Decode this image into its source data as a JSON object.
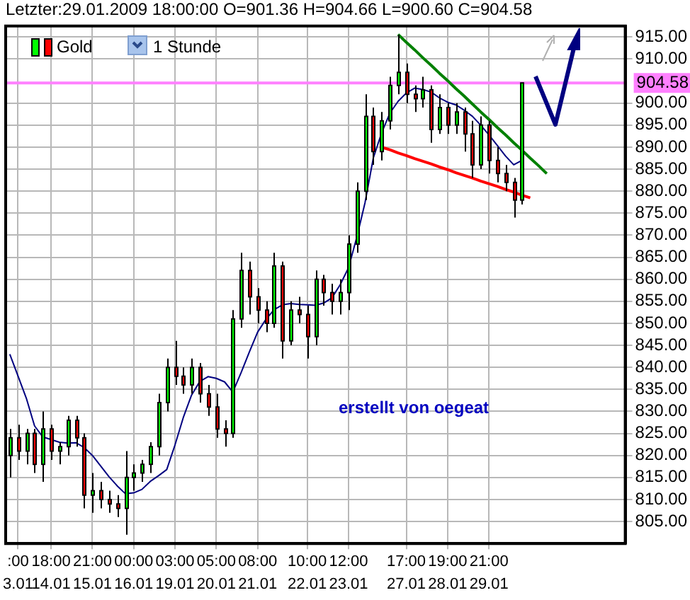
{
  "chart_data": {
    "type": "candlestick",
    "title": "Letzter:29.01.2009 18:00:00 O=901.36 H=904.66 L=900.60 C=904.58",
    "categories": [
      null,
      ":00\n3.01",
      null,
      null,
      null,
      "18:00\n14.01",
      null,
      null,
      null,
      null,
      "21:00\n15.01",
      null,
      null,
      null,
      null,
      "00:00\n16.01",
      null,
      null,
      null,
      null,
      "03:00\n19.01",
      null,
      null,
      null,
      null,
      "05:00\n20.01",
      null,
      null,
      null,
      null,
      "08:00\n21.01",
      null,
      null,
      null,
      null,
      null,
      "10:00\n22.01",
      null,
      null,
      null,
      null,
      "12:00\n23.01",
      null,
      null,
      null,
      null,
      null,
      null,
      "17:00\n27.01",
      null,
      null,
      null,
      null,
      "19:00\n28.01",
      null,
      null,
      null,
      null,
      "21:00\n29.01",
      null,
      null,
      null,
      null,
      null,
      null,
      null,
      null,
      null,
      null,
      null,
      null,
      null,
      null,
      null,
      null
    ],
    "ylim": [
      800,
      917.5
    ],
    "yticks": [
      {
        "value": 805,
        "label": "805.00"
      },
      {
        "value": 810,
        "label": "810.00"
      },
      {
        "value": 815,
        "label": "815.00"
      },
      {
        "value": 820,
        "label": "820.00"
      },
      {
        "value": 825,
        "label": "825.00"
      },
      {
        "value": 830,
        "label": "830.00"
      },
      {
        "value": 835,
        "label": "835.00"
      },
      {
        "value": 840,
        "label": "840.00"
      },
      {
        "value": 845,
        "label": "845.00"
      },
      {
        "value": 850,
        "label": "850.00"
      },
      {
        "value": 855,
        "label": "855.00"
      },
      {
        "value": 860,
        "label": "860.00"
      },
      {
        "value": 865,
        "label": "865.00"
      },
      {
        "value": 870,
        "label": "870.00"
      },
      {
        "value": 875,
        "label": "875.00"
      },
      {
        "value": 880,
        "label": "880.00"
      },
      {
        "value": 885,
        "label": "885.00"
      },
      {
        "value": 890,
        "label": "890.00"
      },
      {
        "value": 895,
        "label": "895.00"
      },
      {
        "value": 900,
        "label": "900.00"
      },
      {
        "value": 910,
        "label": "910.00"
      },
      {
        "value": 915,
        "label": "915.00"
      }
    ],
    "grid": true,
    "legend": "top left",
    "ref_lines": [
      {
        "axis": "y",
        "value": 904.58,
        "label": "904.58",
        "color": "#ff80ff"
      }
    ],
    "annotations": [
      "1 Stunde",
      "erstellt von oegeat"
    ],
    "series": [
      {
        "name": "Gold",
        "type": "candlestick",
        "colors": [
          "#00ff00",
          "#ff0000",
          "#00ff00",
          "#ff0000",
          "#00ff00",
          "#ff0000",
          "#00ff00",
          "#00ff00",
          "#ff0000",
          "#ff0000",
          "#00ff00",
          "#ff0000",
          "#ff0000",
          "#ff0000",
          "#00ff00",
          "#00ff00",
          "#00ff00",
          "#00ff00",
          "#00ff00",
          "#00ff00",
          "#ff0000",
          "#ff0000",
          "#00ff00",
          "#ff0000",
          "#ff0000",
          "#ff0000",
          "#ff0000",
          "#00ff00",
          "#00ff00",
          "#ff0000",
          "#ff0000",
          "#ff0000",
          "#00ff00",
          "#ff0000",
          "#00ff00",
          "#ff0000",
          "#ff0000",
          "#00ff00",
          "#ff0000",
          "#ff0000",
          "#00ff00",
          "#00ff00",
          "#00ff00",
          "#00ff00",
          "#ff0000",
          "#00ff00",
          "#00ff00",
          "#00ff00",
          "#ff0000",
          "#ff0000",
          "#00ff00",
          "#ff0000",
          "#00ff00",
          "#ff0000",
          "#00ff00",
          "#ff0000",
          "#ff0000",
          "#00ff00",
          "#ff0000",
          "#ff0000",
          "#ff0000",
          "#ff0000",
          "#00ff00",
          null,
          null,
          null,
          null,
          null,
          null,
          null,
          null,
          null,
          null,
          null,
          null
        ],
        "ohlc": [
          [
            820,
            826,
            815,
            824
          ],
          [
            824,
            827,
            819,
            821
          ],
          [
            821,
            826,
            818,
            825
          ],
          [
            825,
            826,
            816,
            818
          ],
          [
            818,
            830,
            814,
            826
          ],
          [
            826,
            827,
            819,
            821
          ],
          [
            821,
            823,
            818,
            822
          ],
          [
            822,
            829,
            820,
            828
          ],
          [
            828,
            829,
            822,
            824
          ],
          [
            824,
            825,
            808,
            811
          ],
          [
            811,
            816,
            807,
            812
          ],
          [
            812,
            814,
            808,
            810
          ],
          [
            810,
            812,
            807,
            809
          ],
          [
            809,
            811,
            806,
            808
          ],
          [
            808,
            821,
            802,
            815
          ],
          [
            815,
            818,
            812,
            816
          ],
          [
            816,
            819,
            814,
            818
          ],
          [
            818,
            823,
            816,
            822
          ],
          [
            822,
            834,
            820,
            832
          ],
          [
            832,
            842,
            830,
            840
          ],
          [
            840,
            846,
            836,
            838
          ],
          [
            838,
            840,
            834,
            836
          ],
          [
            836,
            842,
            834,
            840
          ],
          [
            840,
            841,
            832,
            834
          ],
          [
            834,
            836,
            829,
            831
          ],
          [
            831,
            834,
            824,
            826
          ],
          [
            826,
            828,
            822,
            825
          ],
          [
            825,
            853,
            824,
            851
          ],
          [
            851,
            866,
            849,
            862
          ],
          [
            862,
            864,
            852,
            856
          ],
          [
            856,
            858,
            850,
            853
          ],
          [
            853,
            855,
            848,
            850
          ],
          [
            850,
            866,
            849,
            863
          ],
          [
            863,
            864,
            842,
            846
          ],
          [
            846,
            855,
            845,
            853
          ],
          [
            853,
            856,
            850,
            852
          ],
          [
            852,
            854,
            842,
            847
          ],
          [
            847,
            862,
            845,
            860
          ],
          [
            860,
            861,
            854,
            857
          ],
          [
            857,
            859,
            852,
            855
          ],
          [
            855,
            860,
            852,
            857
          ],
          [
            857,
            870,
            853,
            868
          ],
          [
            868,
            882,
            866,
            880
          ],
          [
            880,
            902,
            878,
            897
          ],
          [
            897,
            899,
            886,
            889
          ],
          [
            889,
            898,
            887,
            896
          ],
          [
            896,
            906,
            894,
            904
          ],
          [
            904,
            915.5,
            902,
            907
          ],
          [
            907,
            909,
            900,
            902
          ],
          [
            902,
            904,
            898,
            901
          ],
          [
            901,
            906,
            899,
            903
          ],
          [
            903,
            904,
            891,
            894
          ],
          [
            894,
            902,
            893,
            899
          ],
          [
            899,
            900,
            893,
            895
          ],
          [
            895,
            900,
            893,
            898
          ],
          [
            898,
            899,
            889,
            893
          ],
          [
            893,
            896,
            883,
            886
          ],
          [
            886,
            897,
            885,
            895
          ],
          [
            895,
            896,
            884,
            887
          ],
          [
            887,
            890,
            882,
            884
          ],
          [
            884,
            886,
            880,
            882
          ],
          [
            882,
            883,
            874,
            878
          ],
          [
            878,
            904.66,
            877,
            904.58
          ],
          null,
          null,
          null,
          null,
          null,
          null,
          null,
          null,
          null,
          null,
          null,
          null
        ]
      },
      {
        "type": "line",
        "color": "#000080",
        "values": [
          843,
          838,
          833,
          826.7,
          824.2,
          823.6,
          823,
          822.8,
          822.9,
          821.8,
          820,
          817.6,
          815.2,
          813.1,
          811.3,
          811.5,
          812.3,
          814.1,
          815.4,
          816.8,
          822.4,
          828.6,
          833.7,
          836.8,
          837.9,
          837.5,
          836.7,
          834.4,
          838.8,
          843.5,
          848,
          850.9,
          853.1,
          854.2,
          854.5,
          854.3,
          854.2,
          854.1,
          854.6,
          855.8,
          858.8,
          862.6,
          869.5,
          877.4,
          887.5,
          893.2,
          897.7,
          900.4,
          902.3,
          903.4,
          903.1,
          902.5,
          901.2,
          900.2,
          899.6,
          898.4,
          897,
          895,
          892.8,
          890.4,
          888,
          886,
          887,
          null,
          null,
          null,
          null,
          null,
          null,
          null,
          null,
          null,
          null,
          null,
          null
        ]
      },
      {
        "type": "line",
        "color": "#008000",
        "values": [
          null,
          null,
          null,
          null,
          null,
          null,
          null,
          null,
          null,
          null,
          null,
          null,
          null,
          null,
          null,
          null,
          null,
          null,
          null,
          null,
          null,
          null,
          null,
          null,
          null,
          null,
          null,
          null,
          null,
          null,
          null,
          null,
          null,
          null,
          null,
          null,
          null,
          null,
          null,
          null,
          null,
          null,
          null,
          null,
          null,
          null,
          null,
          915.6,
          913.8,
          912.1,
          910.3,
          908.6,
          906.8,
          905.1,
          903.3,
          901.6,
          899.8,
          898.0,
          896.3,
          894.5,
          892.8,
          891.0,
          889.3,
          887.5,
          885.8,
          884.0,
          null,
          null,
          null,
          null,
          null,
          null,
          null,
          null,
          null
        ]
      },
      {
        "type": "line",
        "color": "#ff0000",
        "values": [
          null,
          null,
          null,
          null,
          null,
          null,
          null,
          null,
          null,
          null,
          null,
          null,
          null,
          null,
          null,
          null,
          null,
          null,
          null,
          null,
          null,
          null,
          null,
          null,
          null,
          null,
          null,
          null,
          null,
          null,
          null,
          null,
          null,
          null,
          null,
          null,
          null,
          null,
          null,
          null,
          null,
          null,
          null,
          null,
          null,
          890,
          889.4,
          888.7,
          888.1,
          887.4,
          886.8,
          886.2,
          885.5,
          884.9,
          884.2,
          883.6,
          883.0,
          882.3,
          881.7,
          881.1,
          880.4,
          879.8,
          879.1,
          878.5,
          null,
          null,
          null,
          null,
          null,
          null,
          null,
          null,
          null,
          null,
          null
        ]
      }
    ]
  }
}
